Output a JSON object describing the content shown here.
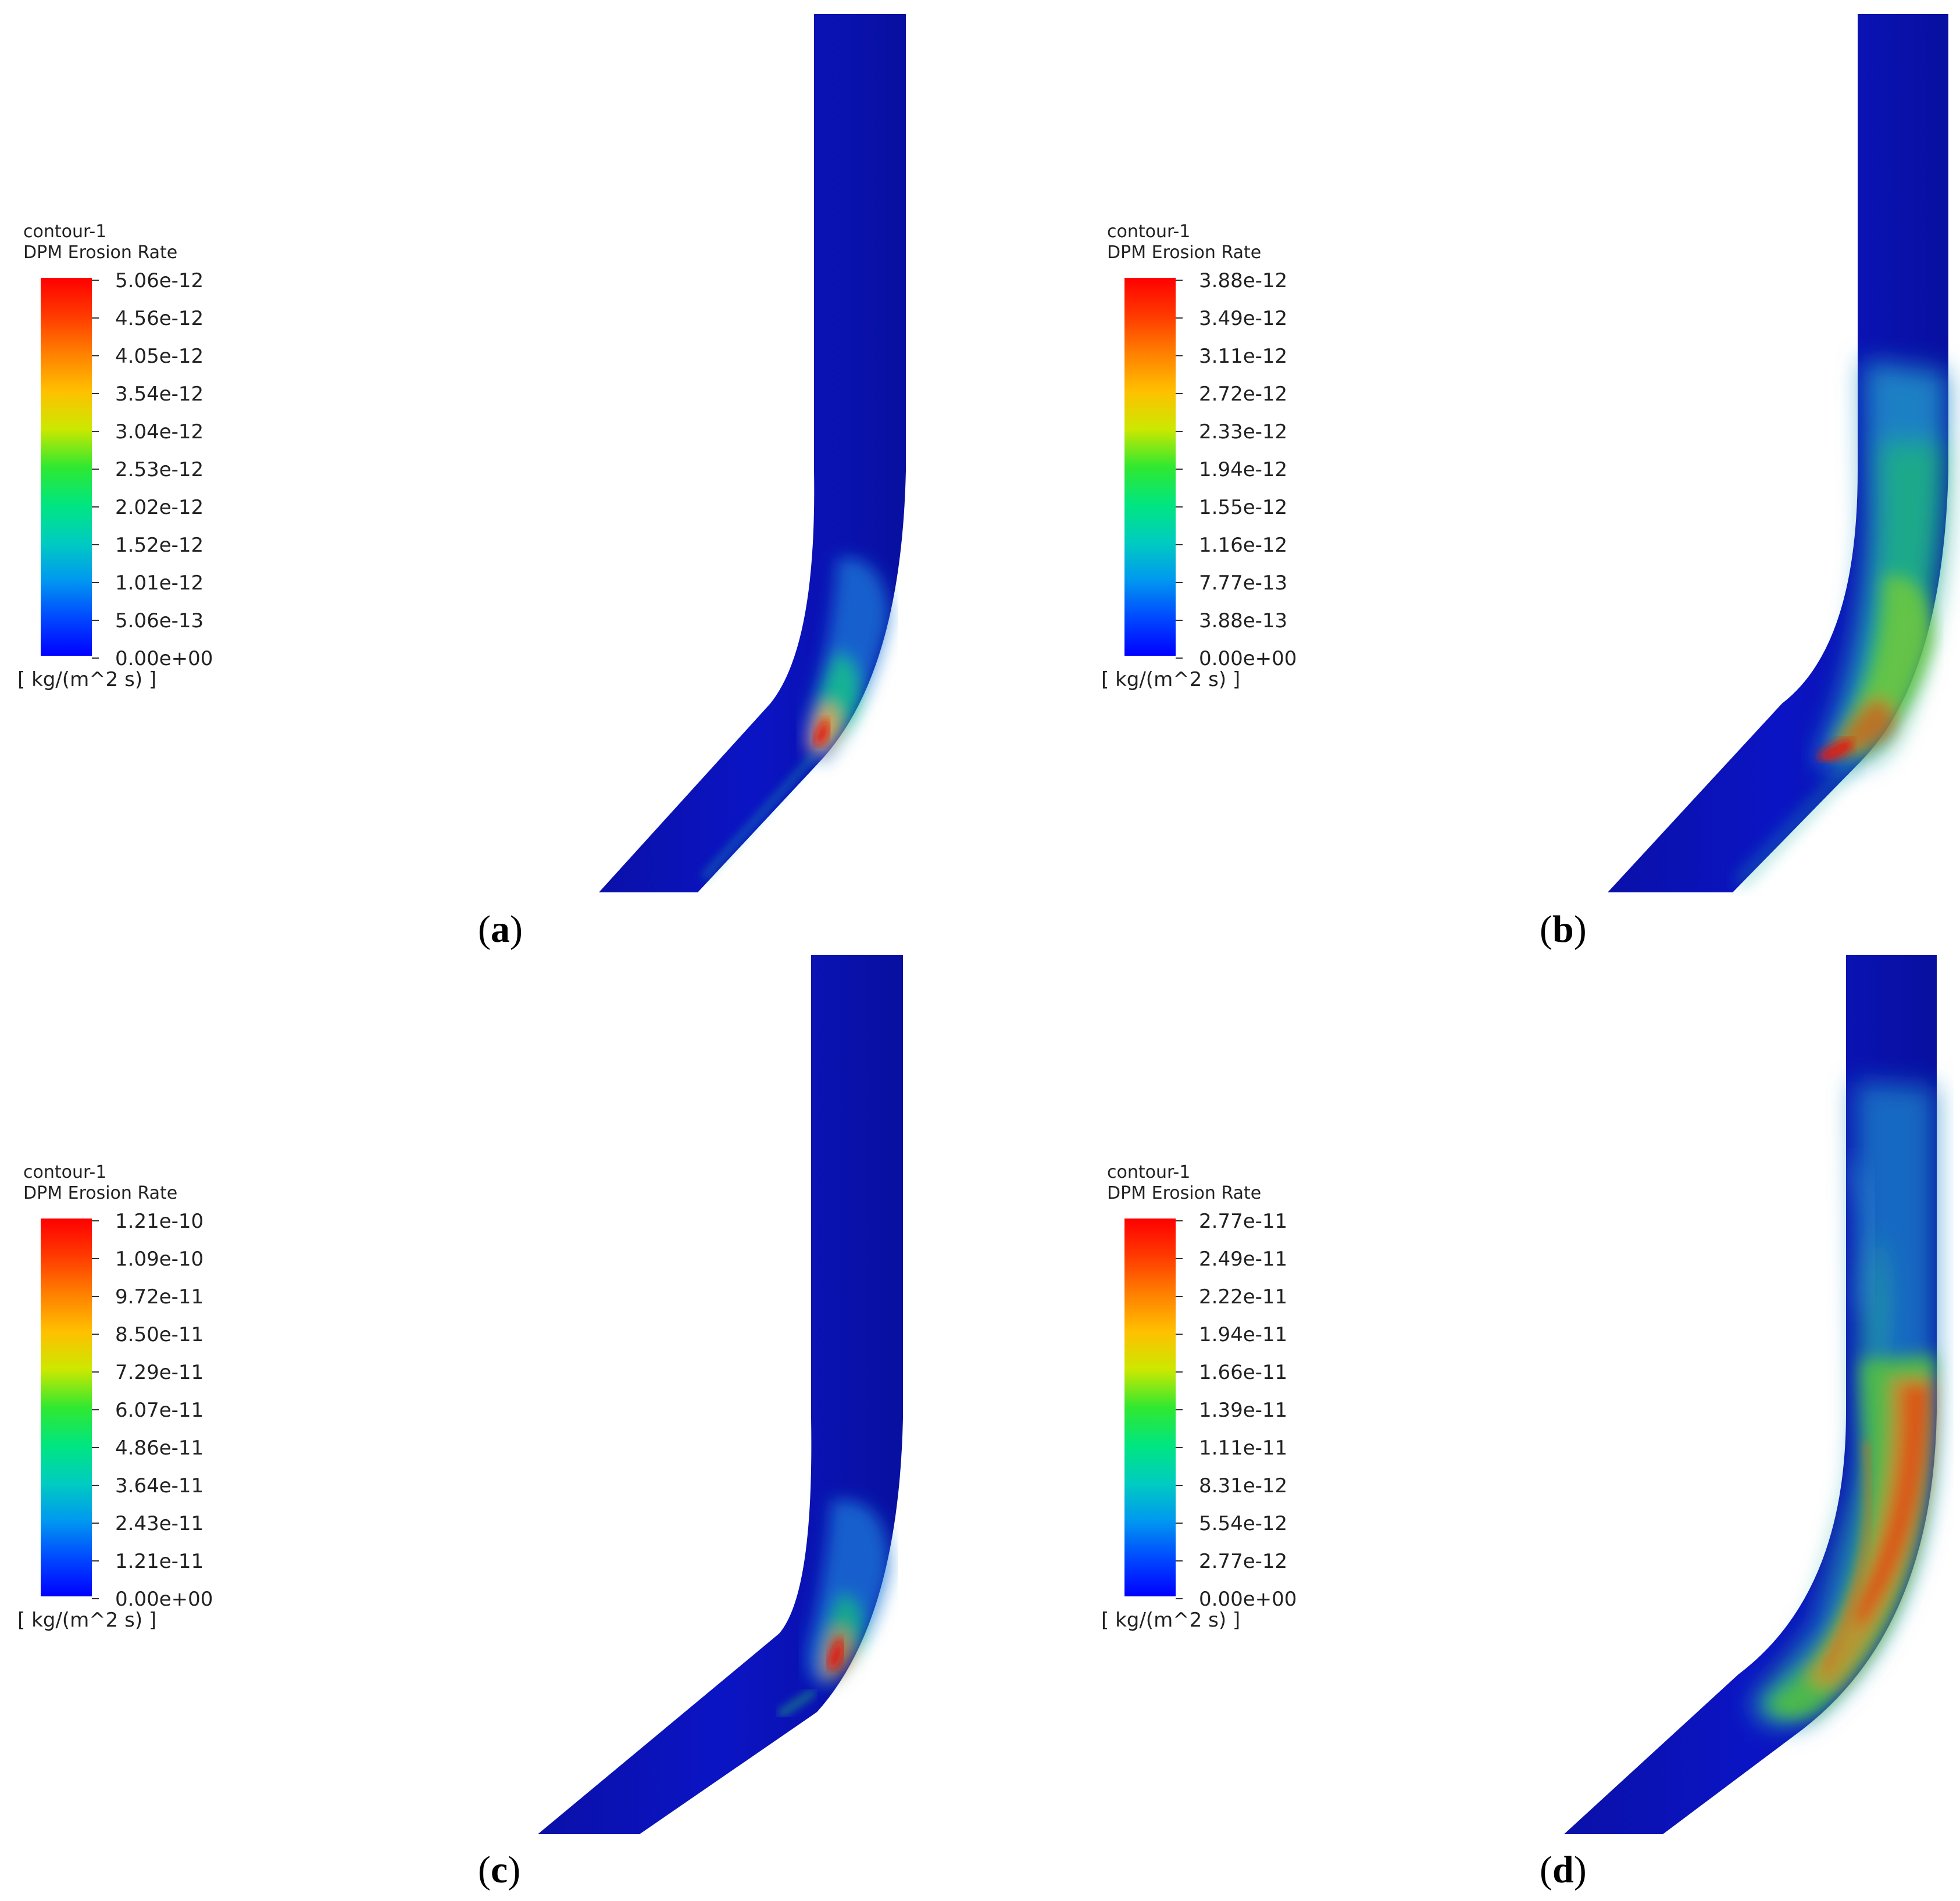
{
  "panels": [
    {
      "id": "a",
      "label_letter": "a",
      "legend": {
        "name": "contour-1",
        "quantity": "DPM Erosion Rate",
        "unit": "[ kg/(m^2 s) ]",
        "ticks": [
          "5.06e-12",
          "4.56e-12",
          "4.05e-12",
          "3.54e-12",
          "3.04e-12",
          "2.53e-12",
          "2.02e-12",
          "1.52e-12",
          "1.01e-12",
          "5.06e-13",
          "0.00e+00"
        ]
      }
    },
    {
      "id": "b",
      "label_letter": "b",
      "legend": {
        "name": "contour-1",
        "quantity": "DPM Erosion Rate",
        "unit": "[ kg/(m^2 s) ]",
        "ticks": [
          "3.88e-12",
          "3.49e-12",
          "3.11e-12",
          "2.72e-12",
          "2.33e-12",
          "1.94e-12",
          "1.55e-12",
          "1.16e-12",
          "7.77e-13",
          "3.88e-13",
          "0.00e+00"
        ]
      }
    },
    {
      "id": "c",
      "label_letter": "c",
      "legend": {
        "name": "contour-1",
        "quantity": "DPM Erosion Rate",
        "unit": "[ kg/(m^2 s) ]",
        "ticks": [
          "1.21e-10",
          "1.09e-10",
          "9.72e-11",
          "8.50e-11",
          "7.29e-11",
          "6.07e-11",
          "4.86e-11",
          "3.64e-11",
          "2.43e-11",
          "1.21e-11",
          "0.00e+00"
        ]
      }
    },
    {
      "id": "d",
      "label_letter": "d",
      "legend": {
        "name": "contour-1",
        "quantity": "DPM Erosion Rate",
        "unit": "[ kg/(m^2 s) ]",
        "ticks": [
          "2.77e-11",
          "2.49e-11",
          "2.22e-11",
          "1.94e-11",
          "1.66e-11",
          "1.39e-11",
          "1.11e-11",
          "8.31e-12",
          "5.54e-12",
          "2.77e-12",
          "0.00e+00"
        ]
      }
    }
  ],
  "colormap": [
    "#ff0000",
    "#ff4a00",
    "#ff8c00",
    "#ffc400",
    "#d8e600",
    "#40ea18",
    "#00e47a",
    "#00c8c0",
    "#0096f0",
    "#0040ff",
    "#0000ff"
  ],
  "pipe_base_color": "#0a12b8"
}
